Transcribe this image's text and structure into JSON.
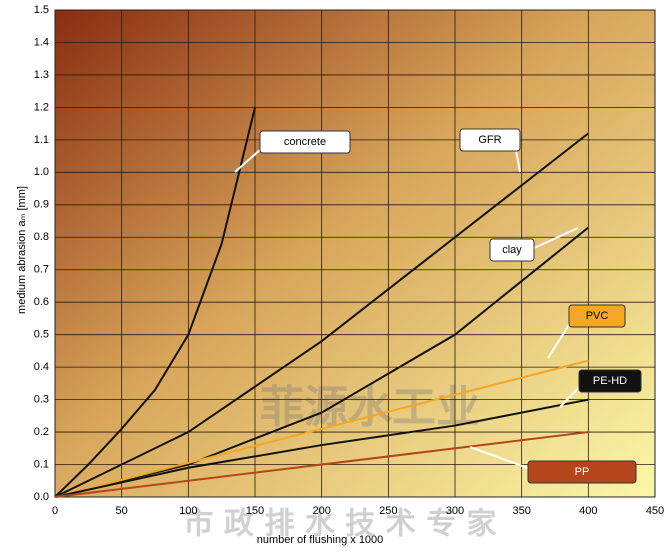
{
  "chart_data": {
    "type": "line",
    "xlabel": "number of flushing x 1000",
    "ylabel": "medium abrasion aₘ [mm]",
    "xlim": [
      0,
      450
    ],
    "xticks": [
      0,
      50,
      100,
      150,
      200,
      250,
      300,
      350,
      400,
      450
    ],
    "ylim": [
      0,
      1.5
    ],
    "yticks": [
      {
        "value": 0,
        "label": "0.0"
      },
      0.1,
      0.2,
      0.3,
      0.4,
      0.5,
      0.6,
      0.7,
      0.8,
      0.9,
      {
        "value": 1,
        "label": "1.0"
      },
      1.1,
      1.2,
      1.3,
      1.4,
      1.5
    ],
    "grid": true,
    "series": [
      {
        "name": "concrete",
        "color": "#111111",
        "x": [
          0,
          25,
          50,
          75,
          100,
          125,
          150
        ],
        "values": [
          0,
          0.1,
          0.21,
          0.33,
          0.5,
          0.78,
          1.2
        ]
      },
      {
        "name": "GFR",
        "color": "#111111",
        "x": [
          0,
          100,
          200,
          300,
          400
        ],
        "values": [
          0,
          0.2,
          0.48,
          0.8,
          1.12
        ]
      },
      {
        "name": "clay",
        "color": "#111111",
        "x": [
          0,
          100,
          200,
          300,
          400
        ],
        "values": [
          0,
          0.1,
          0.26,
          0.5,
          0.83
        ]
      },
      {
        "name": "PVC",
        "color": "#f5a623",
        "x": [
          0,
          400
        ],
        "values": [
          0,
          0.42
        ]
      },
      {
        "name": "PE-HD",
        "color": "#111111",
        "x": [
          0,
          100,
          200,
          300,
          400
        ],
        "values": [
          0,
          0.09,
          0.16,
          0.22,
          0.3
        ]
      },
      {
        "name": "PP",
        "color": "#b5451b",
        "x": [
          0,
          400
        ],
        "values": [
          0,
          0.2
        ]
      }
    ],
    "watermarks": [
      "菲源水工业",
      "市 政 排 水 技 术 专 家"
    ]
  }
}
